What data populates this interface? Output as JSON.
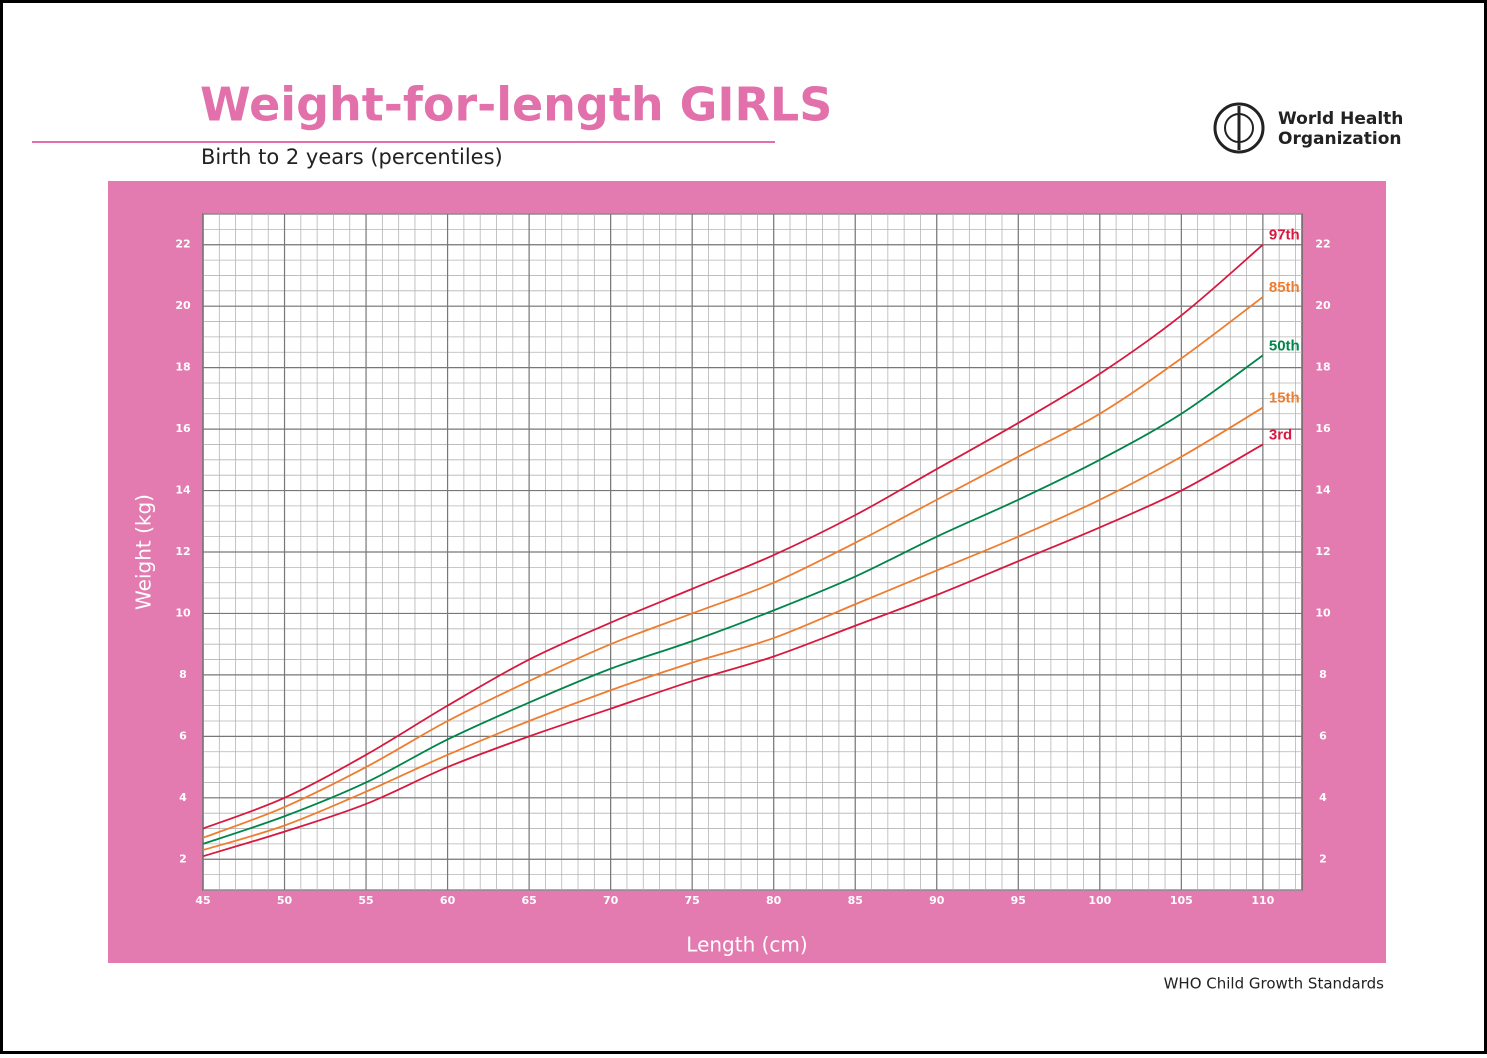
{
  "chart_data": {
    "type": "line",
    "title": "Weight-for-length GIRLS",
    "subtitle": "Birth to 2 years (percentiles)",
    "logo_text": [
      "World Health",
      "Organization"
    ],
    "source": "WHO Child Growth Standards",
    "x_label": "Length (cm)",
    "y_label": "Weight (kg)",
    "x": [
      45,
      50,
      55,
      60,
      65,
      70,
      75,
      80,
      85,
      90,
      95,
      100,
      105,
      110
    ],
    "series": [
      {
        "name": "97th",
        "color": "#d7193f",
        "values": [
          3.0,
          4.0,
          5.4,
          7.0,
          8.5,
          9.7,
          10.8,
          11.9,
          13.2,
          14.7,
          16.2,
          17.8,
          19.7,
          22.0
        ]
      },
      {
        "name": "85th",
        "color": "#ee7d2f",
        "values": [
          2.7,
          3.7,
          5.0,
          6.5,
          7.8,
          9.0,
          10.0,
          11.0,
          12.3,
          13.7,
          15.1,
          16.5,
          18.3,
          20.3
        ]
      },
      {
        "name": "50th",
        "color": "#00854a",
        "values": [
          2.5,
          3.4,
          4.5,
          5.9,
          7.1,
          8.2,
          9.1,
          10.1,
          11.2,
          12.5,
          13.7,
          15.0,
          16.5,
          18.4
        ]
      },
      {
        "name": "15th",
        "color": "#ee7d2f",
        "values": [
          2.3,
          3.1,
          4.2,
          5.4,
          6.5,
          7.5,
          8.4,
          9.2,
          10.3,
          11.4,
          12.5,
          13.7,
          15.1,
          16.7
        ]
      },
      {
        "name": "3rd",
        "color": "#d7193f",
        "values": [
          2.1,
          2.9,
          3.8,
          5.0,
          6.0,
          6.9,
          7.8,
          8.6,
          9.6,
          10.6,
          11.7,
          12.8,
          14.0,
          15.5
        ]
      }
    ],
    "xlim": [
      45,
      112.4
    ],
    "ylim": [
      1,
      23
    ],
    "xticks": [
      45,
      50,
      55,
      60,
      65,
      70,
      75,
      80,
      85,
      90,
      95,
      100,
      105,
      110
    ],
    "yticks": [
      2,
      4,
      6,
      8,
      10,
      12,
      14,
      16,
      18,
      20,
      22
    ],
    "grid": true,
    "minor_grid": {
      "x": 1,
      "y": 0.5
    }
  }
}
